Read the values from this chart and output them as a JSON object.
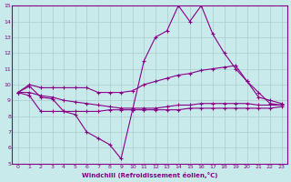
{
  "title": "",
  "xlabel": "Windchill (Refroidissement éolien,°C)",
  "bg_color": "#c8eaea",
  "grid_color": "#aacccc",
  "line_color": "#880088",
  "xlim": [
    -0.5,
    23.5
  ],
  "ylim": [
    5,
    15
  ],
  "xticks": [
    0,
    1,
    2,
    3,
    4,
    5,
    6,
    7,
    8,
    9,
    10,
    11,
    12,
    13,
    14,
    15,
    16,
    17,
    18,
    19,
    20,
    21,
    22,
    23
  ],
  "yticks": [
    5,
    6,
    7,
    8,
    9,
    10,
    11,
    12,
    13,
    14,
    15
  ],
  "line1_x": [
    0,
    1,
    2,
    3,
    4,
    5,
    6,
    7,
    8,
    9,
    10,
    11,
    12,
    13,
    14,
    15,
    16,
    17,
    18,
    19,
    20,
    21,
    22,
    23
  ],
  "line1_y": [
    9.5,
    9.9,
    9.2,
    9.1,
    8.3,
    8.1,
    7.0,
    6.6,
    6.2,
    5.3,
    8.4,
    11.5,
    13.0,
    13.4,
    15.0,
    14.0,
    15.0,
    13.2,
    12.0,
    11.0,
    10.2,
    9.5,
    8.8,
    8.7
  ],
  "line2_x": [
    0,
    1,
    2,
    3,
    4,
    5,
    6,
    7,
    8,
    9,
    10,
    11,
    12,
    13,
    14,
    15,
    16,
    17,
    18,
    19,
    20,
    21,
    22,
    23
  ],
  "line2_y": [
    9.5,
    10.0,
    9.8,
    9.8,
    9.8,
    9.8,
    9.8,
    9.5,
    9.5,
    9.5,
    9.6,
    10.0,
    10.2,
    10.4,
    10.6,
    10.7,
    10.9,
    11.0,
    11.1,
    11.2,
    10.2,
    9.2,
    9.0,
    8.8
  ],
  "line3_x": [
    0,
    1,
    2,
    3,
    4,
    5,
    6,
    7,
    8,
    9,
    10,
    11,
    12,
    13,
    14,
    15,
    16,
    17,
    18,
    19,
    20,
    21,
    22,
    23
  ],
  "line3_y": [
    9.5,
    9.5,
    9.3,
    9.2,
    9.0,
    8.9,
    8.8,
    8.7,
    8.6,
    8.5,
    8.5,
    8.5,
    8.5,
    8.6,
    8.7,
    8.7,
    8.8,
    8.8,
    8.8,
    8.8,
    8.8,
    8.7,
    8.7,
    8.7
  ],
  "line4_x": [
    0,
    1,
    2,
    3,
    4,
    5,
    6,
    7,
    8,
    9,
    10,
    11,
    12,
    13,
    14,
    15,
    16,
    17,
    18,
    19,
    20,
    21,
    22,
    23
  ],
  "line4_y": [
    9.5,
    9.3,
    8.3,
    8.3,
    8.3,
    8.3,
    8.3,
    8.3,
    8.4,
    8.4,
    8.4,
    8.4,
    8.4,
    8.4,
    8.4,
    8.5,
    8.5,
    8.5,
    8.5,
    8.5,
    8.5,
    8.5,
    8.5,
    8.6
  ]
}
